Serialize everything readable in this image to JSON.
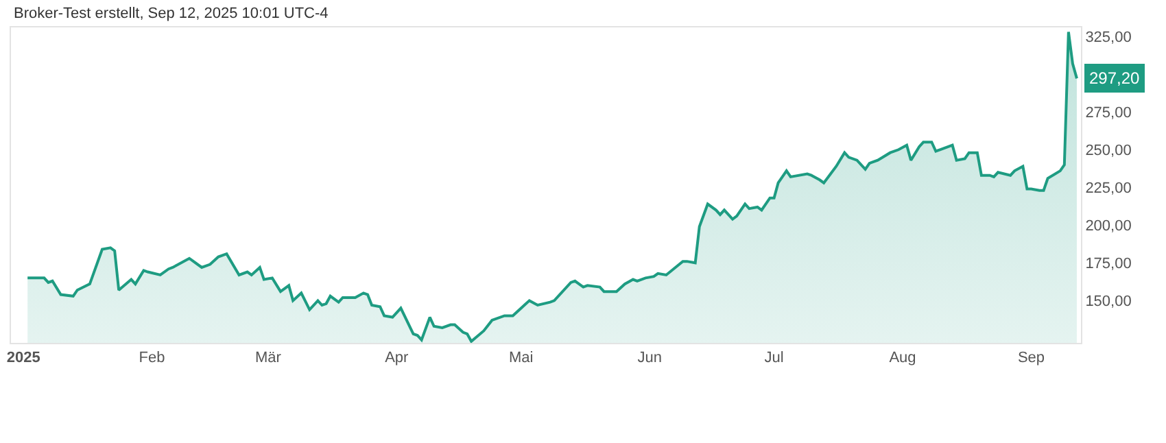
{
  "chart_data": {
    "type": "area",
    "title": "Broker-Test erstellt, Sep 12, 2025 10:01 UTC-4",
    "x": [
      "2025-01-02",
      "2025-01-06",
      "2025-01-07",
      "2025-01-08",
      "2025-01-10",
      "2025-01-13",
      "2025-01-14",
      "2025-01-17",
      "2025-01-20",
      "2025-01-22",
      "2025-01-23",
      "2025-01-24",
      "2025-01-27",
      "2025-01-28",
      "2025-01-30",
      "2025-01-31",
      "2025-02-03",
      "2025-02-05",
      "2025-02-06",
      "2025-02-10",
      "2025-02-11",
      "2025-02-13",
      "2025-02-15",
      "2025-02-17",
      "2025-02-19",
      "2025-02-22",
      "2025-02-24",
      "2025-02-25",
      "2025-02-27",
      "2025-02-28",
      "2025-03-02",
      "2025-03-04",
      "2025-03-06",
      "2025-03-07",
      "2025-03-09",
      "2025-03-11",
      "2025-03-13",
      "2025-03-14",
      "2025-03-15",
      "2025-03-16",
      "2025-03-18",
      "2025-03-19",
      "2025-03-22",
      "2025-03-24",
      "2025-03-25",
      "2025-03-26",
      "2025-03-28",
      "2025-03-29",
      "2025-03-31",
      "2025-04-02",
      "2025-04-05",
      "2025-04-06",
      "2025-04-07",
      "2025-04-09",
      "2025-04-10",
      "2025-04-12",
      "2025-04-14",
      "2025-04-15",
      "2025-04-17",
      "2025-04-18",
      "2025-04-19",
      "2025-04-22",
      "2025-04-24",
      "2025-04-27",
      "2025-04-29",
      "2025-05-03",
      "2025-05-05",
      "2025-05-08",
      "2025-05-09",
      "2025-05-13",
      "2025-05-14",
      "2025-05-16",
      "2025-05-17",
      "2025-05-20",
      "2025-05-21",
      "2025-05-24",
      "2025-05-26",
      "2025-05-28",
      "2025-05-29",
      "2025-05-31",
      "2025-06-02",
      "2025-06-03",
      "2025-06-05",
      "2025-06-09",
      "2025-06-10",
      "2025-06-12",
      "2025-06-13",
      "2025-06-15",
      "2025-06-17",
      "2025-06-18",
      "2025-06-19",
      "2025-06-21",
      "2025-06-22",
      "2025-06-24",
      "2025-06-25",
      "2025-06-27",
      "2025-06-28",
      "2025-06-30",
      "2025-07-01",
      "2025-07-02",
      "2025-07-04",
      "2025-07-05",
      "2025-07-09",
      "2025-07-10",
      "2025-07-12",
      "2025-07-13",
      "2025-07-16",
      "2025-07-18",
      "2025-07-19",
      "2025-07-21",
      "2025-07-23",
      "2025-07-24",
      "2025-07-26",
      "2025-07-29",
      "2025-07-31",
      "2025-08-02",
      "2025-08-03",
      "2025-08-05",
      "2025-08-06",
      "2025-08-08",
      "2025-08-09",
      "2025-08-10",
      "2025-08-12",
      "2025-08-13",
      "2025-08-14",
      "2025-08-16",
      "2025-08-17",
      "2025-08-19",
      "2025-08-20",
      "2025-08-22",
      "2025-08-23",
      "2025-08-24",
      "2025-08-27",
      "2025-08-28",
      "2025-08-30",
      "2025-08-31",
      "2025-09-01",
      "2025-09-03",
      "2025-09-04",
      "2025-09-05",
      "2025-09-08",
      "2025-09-09",
      "2025-09-10",
      "2025-09-11",
      "2025-09-12"
    ],
    "series": [
      {
        "color": "#1e9c82",
        "values": [
          165,
          165,
          162,
          163,
          154,
          153,
          157,
          161,
          184,
          185,
          183,
          157,
          164,
          161,
          170,
          169,
          167,
          171,
          172,
          178,
          176,
          172,
          174,
          179,
          181,
          167,
          169,
          167,
          172,
          164,
          165,
          156,
          160,
          150,
          155,
          144,
          150,
          147,
          148,
          153,
          149,
          152,
          152,
          155,
          154,
          147,
          146,
          140,
          139,
          145,
          128,
          127,
          124,
          139,
          133,
          132,
          134,
          134,
          129,
          128,
          123,
          130,
          137,
          140,
          140,
          150,
          147,
          149,
          150,
          162,
          163,
          159,
          160,
          159,
          156,
          156,
          161,
          164,
          163,
          165,
          166,
          168,
          167,
          176,
          176,
          175,
          199,
          214,
          210,
          207,
          210,
          204,
          206,
          214,
          211,
          212,
          210,
          218,
          218,
          228,
          236,
          232,
          234,
          233,
          230,
          228,
          239,
          248,
          245,
          243,
          237,
          241,
          243,
          248,
          250,
          253,
          243,
          252,
          255,
          255,
          249,
          250,
          252,
          253,
          243,
          244,
          248,
          248,
          233,
          233,
          232,
          235,
          233,
          236,
          239,
          224,
          224,
          223,
          223,
          231,
          236,
          240,
          328,
          307,
          297.2
        ]
      }
    ],
    "xlim": [
      "2024-12-29",
      "2025-09-13"
    ],
    "xticks": [
      {
        "value": "2025-01-01",
        "label": "2025"
      },
      {
        "value": "2025-02-01",
        "label": "Feb"
      },
      {
        "value": "2025-03-01",
        "label": "Mär"
      },
      {
        "value": "2025-04-01",
        "label": "Apr"
      },
      {
        "value": "2025-05-01",
        "label": "Mai"
      },
      {
        "value": "2025-06-01",
        "label": "Jun"
      },
      {
        "value": "2025-07-01",
        "label": "Jul"
      },
      {
        "value": "2025-08-01",
        "label": "Aug"
      },
      {
        "value": "2025-09-01",
        "label": "Sep"
      }
    ],
    "ylim": [
      122,
      331
    ],
    "yticks": [
      {
        "value": 150,
        "label": "150,00"
      },
      {
        "value": 175,
        "label": "175,00"
      },
      {
        "value": 200,
        "label": "200,00"
      },
      {
        "value": 225,
        "label": "225,00"
      },
      {
        "value": 250,
        "label": "250,00"
      },
      {
        "value": 275,
        "label": "275,00"
      },
      {
        "value": 325,
        "label": "325,00"
      }
    ],
    "annotations": [
      {
        "text": "297,20",
        "y": 297.2
      }
    ],
    "grid": false,
    "marker": "none",
    "line_style": "solid"
  }
}
